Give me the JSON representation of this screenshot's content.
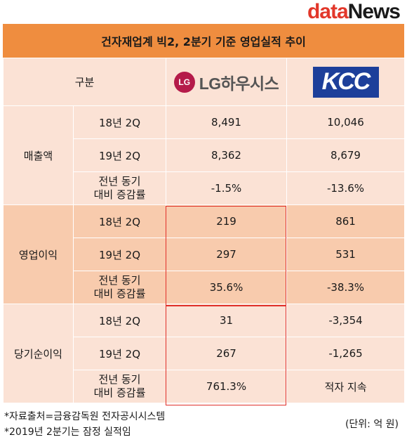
{
  "brand": {
    "part1": "data",
    "part2": "News"
  },
  "title": "건자재업계 빅2, 2분기 기준 영업실적 추이",
  "header": {
    "category": "구분",
    "lg": {
      "symbol": "LG",
      "name": "LG하우시스"
    },
    "kcc": {
      "name": "KCC"
    }
  },
  "sections": [
    {
      "label": "매출액",
      "rows": [
        {
          "period": "18년 2Q",
          "lg": "8,491",
          "kcc": "10,046"
        },
        {
          "period": "19년 2Q",
          "lg": "8,362",
          "kcc": "8,679"
        },
        {
          "period_line1": "전년 동기",
          "period_line2": "대비 증감률",
          "lg": "-1.5%",
          "kcc": "-13.6%"
        }
      ]
    },
    {
      "label": "영업이익",
      "rows": [
        {
          "period": "18년 2Q",
          "lg": "219",
          "kcc": "861"
        },
        {
          "period": "19년 2Q",
          "lg": "297",
          "kcc": "531"
        },
        {
          "period_line1": "전년 동기",
          "period_line2": "대비 증감률",
          "lg": "35.6%",
          "kcc": "-38.3%"
        }
      ]
    },
    {
      "label": "당기순이익",
      "rows": [
        {
          "period": "18년 2Q",
          "lg": "31",
          "kcc": "-3,354"
        },
        {
          "period": "19년 2Q",
          "lg": "267",
          "kcc": "-1,265"
        },
        {
          "period_line1": "전년 동기",
          "period_line2": "대비 증감률",
          "lg": "761.3%",
          "kcc": "적자 지속"
        }
      ]
    }
  ],
  "footer": {
    "note1": "*자료출처=금융감독원 전자공시시스템",
    "note2": "*2019년 2분기는 잠정 실적임",
    "unit": "(단위: 억 원)"
  },
  "colors": {
    "title_bg": "#ef8d3f",
    "light_cell": "#fbe2d5",
    "dark_cell": "#f8cbad",
    "highlight_border": "#e0302a"
  }
}
